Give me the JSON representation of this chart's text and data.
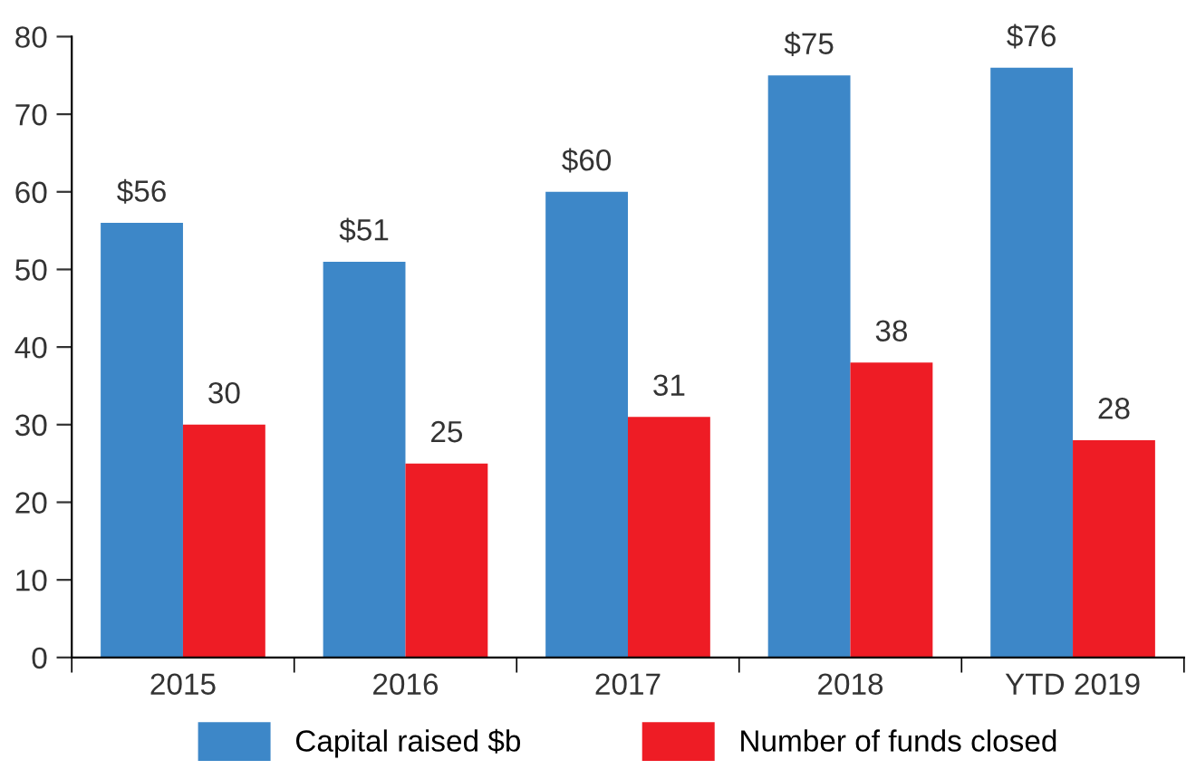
{
  "chart_data": {
    "type": "bar",
    "categories": [
      "2015",
      "2016",
      "2017",
      "2018",
      "YTD 2019"
    ],
    "series": [
      {
        "name": "Capital raised $b",
        "color": "#3d87c8",
        "values": [
          56,
          51,
          60,
          75,
          76
        ],
        "value_labels": [
          "$56",
          "$51",
          "$60",
          "$75",
          "$76"
        ]
      },
      {
        "name": "Number of funds closed",
        "color": "#ee1c25",
        "values": [
          30,
          25,
          31,
          38,
          28
        ],
        "value_labels": [
          "30",
          "25",
          "31",
          "38",
          "28"
        ]
      }
    ],
    "ylim": [
      0,
      80
    ],
    "yticks": [
      0,
      10,
      20,
      30,
      40,
      50,
      60,
      70,
      80
    ],
    "grid": false,
    "legend": "bottom"
  }
}
